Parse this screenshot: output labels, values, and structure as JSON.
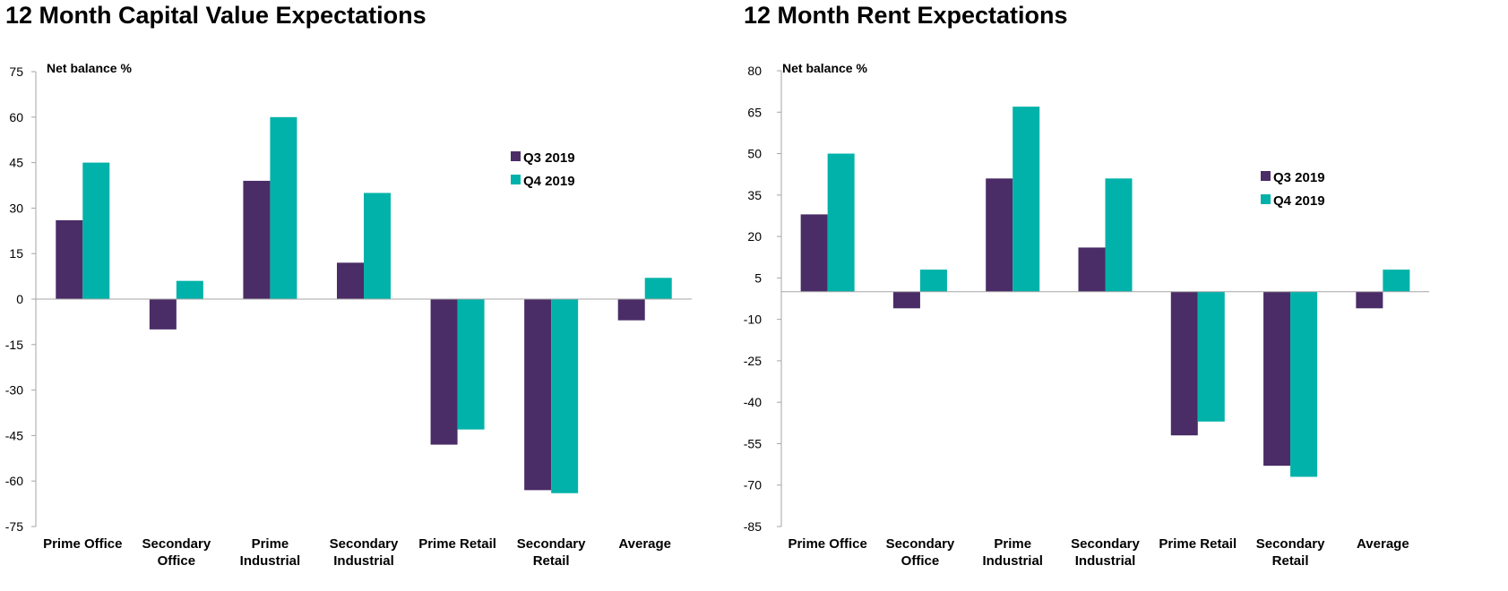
{
  "chart_data": [
    {
      "type": "bar",
      "title": "12 Month Capital Value Expectations",
      "ylabel": "Net balance %",
      "ylim": [
        -75,
        75
      ],
      "yticks": [
        75,
        60,
        45,
        30,
        15,
        0,
        -15,
        -30,
        -45,
        -60,
        -75
      ],
      "categories": [
        "Prime Office",
        "Secondary Office",
        "Prime Industrial",
        "Secondary Industrial",
        "Prime Retail",
        "Secondary Retail",
        "Average"
      ],
      "category_lines": [
        [
          "Prime Office"
        ],
        [
          "Secondary",
          "Office"
        ],
        [
          "Prime",
          "Industrial"
        ],
        [
          "Secondary",
          "Industrial"
        ],
        [
          "Prime Retail"
        ],
        [
          "Secondary",
          "Retail"
        ],
        [
          "Average"
        ]
      ],
      "series": [
        {
          "name": "Q3 2019",
          "color": "#4a2c66",
          "values": [
            26,
            -10,
            39,
            12,
            -48,
            -63,
            -7
          ]
        },
        {
          "name": "Q4 2019",
          "color": "#00b2a9",
          "values": [
            45,
            6,
            60,
            35,
            -43,
            -64,
            7
          ]
        }
      ],
      "legend": "top-right",
      "grid": false
    },
    {
      "type": "bar",
      "title": "12 Month Rent Expectations",
      "ylabel": "Net balance %",
      "ylim": [
        -85,
        80
      ],
      "yticks": [
        80,
        65,
        50,
        35,
        20,
        5,
        -10,
        -25,
        -40,
        -55,
        -70,
        -85
      ],
      "categories": [
        "Prime Office",
        "Secondary Office",
        "Prime Industrial",
        "Secondary Industrial",
        "Prime Retail",
        "Secondary Retail",
        "Average"
      ],
      "category_lines": [
        [
          "Prime Office"
        ],
        [
          "Secondary",
          "Office"
        ],
        [
          "Prime",
          "Industrial"
        ],
        [
          "Secondary",
          "Industrial"
        ],
        [
          "Prime Retail"
        ],
        [
          "Secondary",
          "Retail"
        ],
        [
          "Average"
        ]
      ],
      "series": [
        {
          "name": "Q3 2019",
          "color": "#4a2c66",
          "values": [
            28,
            -6,
            41,
            16,
            -52,
            -63,
            -6
          ]
        },
        {
          "name": "Q4 2019",
          "color": "#00b2a9",
          "values": [
            50,
            8,
            67,
            41,
            -47,
            -67,
            8
          ]
        }
      ],
      "legend": "top-right",
      "grid": false
    }
  ]
}
